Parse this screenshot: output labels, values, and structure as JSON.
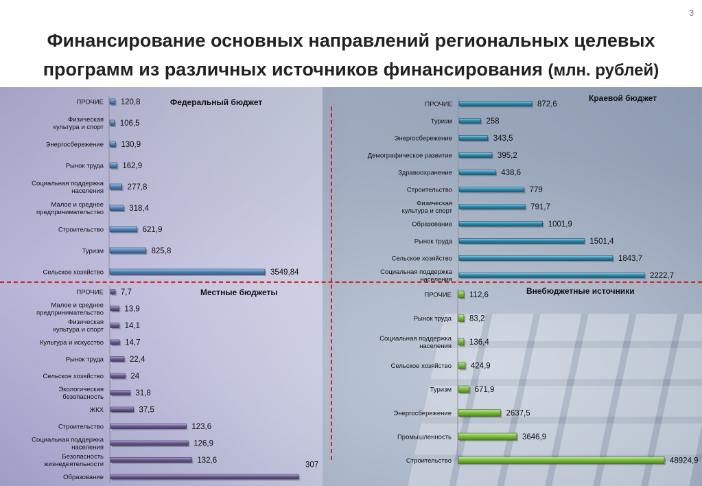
{
  "slide_number": "3",
  "title": {
    "line1": "Финансирование основных направлений региональных целевых",
    "line2": "программ из различных источников финансирования",
    "unit": "(млн. рублей)"
  },
  "colors": {
    "federal": "#4f86c4",
    "regional": "#2a8fb5",
    "local": "#6c5a96",
    "offbudget": "#7cc43a",
    "divider": "#d42020"
  },
  "chart_data": [
    {
      "type": "bar",
      "orientation": "horizontal",
      "title": "Федеральный бюджет",
      "categories": [
        [
          "ПРОЧИЕ"
        ],
        [
          "Физическая",
          "культура и спорт"
        ],
        [
          "Энергосбережение"
        ],
        [
          "Рынок труда"
        ],
        [
          "Социальная поддержка",
          "населения"
        ],
        [
          "Малое и среднее",
          "предпринимательство"
        ],
        [
          "Строительство"
        ],
        [
          "Туризм"
        ],
        [
          "Сельское хозяйство"
        ]
      ],
      "values": [
        120.8,
        106.5,
        130.9,
        162.9,
        277.8,
        318.4,
        621.9,
        825.8,
        3549.84
      ],
      "labels": [
        "120,8",
        "106,5",
        "130,9",
        "162,9",
        "277,8",
        "318,4",
        "621,9",
        "825,8",
        "3549,84"
      ]
    },
    {
      "type": "bar",
      "orientation": "horizontal",
      "title": "Краевой бюджет",
      "categories": [
        [
          "ПРОЧИЕ"
        ],
        [
          "Туризм"
        ],
        [
          "Энергосбережение"
        ],
        [
          "Демографическое развитие"
        ],
        [
          "Здравоохранение"
        ],
        [
          "Строительство"
        ],
        [
          "Физическая",
          "культура и спорт"
        ],
        [
          "Образование"
        ],
        [
          "Рынок труда"
        ],
        [
          "Сельское хозяйство"
        ],
        [
          "Социальная поддержка",
          "населения"
        ]
      ],
      "values": [
        872.6,
        258,
        343.5,
        395.2,
        438.6,
        779,
        791.7,
        1001.9,
        1501.4,
        1843.7,
        2222.7
      ],
      "labels": [
        "872,6",
        "258",
        "343,5",
        "395,2",
        "438,6",
        "779",
        "791,7",
        "1001,9",
        "1501,4",
        "1843,7",
        "2222,7"
      ]
    },
    {
      "type": "bar",
      "orientation": "horizontal",
      "title": "Местные бюджеты",
      "categories": [
        [
          "ПРОЧИЕ"
        ],
        [
          "Малое и среднее",
          "предпринимательство"
        ],
        [
          "Физическая",
          "культура и спорт"
        ],
        [
          "Культура и искусство"
        ],
        [
          "Рынок труда"
        ],
        [
          "Сельское хозяйство"
        ],
        [
          "Экологическая",
          "безопасность"
        ],
        [
          "ЖКХ"
        ],
        [
          "Строительство"
        ],
        [
          "Социальная поддержка",
          "населения"
        ],
        [
          "Безопасность",
          "жизнедеятельности"
        ],
        [
          "Образование"
        ]
      ],
      "values": [
        7.7,
        13.9,
        14.1,
        14.7,
        22.4,
        24,
        31.8,
        37.5,
        123.6,
        126.9,
        132.6,
        307
      ],
      "labels": [
        "7,7",
        "13,9",
        "14,1",
        "14,7",
        "22,4",
        "24",
        "31,8",
        "37,5",
        "123,6",
        "126,9",
        "132,6",
        "307"
      ]
    },
    {
      "type": "bar",
      "orientation": "horizontal",
      "title": "Внебюджетные источники",
      "categories": [
        [
          "ПРОЧИЕ"
        ],
        [
          "Рынок труда"
        ],
        [
          "Социальная поддержка",
          "населения"
        ],
        [
          "Сельское хозяйство"
        ],
        [
          "Туризм"
        ],
        [
          "Энергосбережение"
        ],
        [
          "Промышленность"
        ],
        [
          "Строительство"
        ]
      ],
      "values": [
        112.6,
        83.2,
        136.4,
        424.9,
        671.9,
        2637.5,
        3646.9,
        48924.9
      ],
      "labels": [
        "112,6",
        "83,2",
        "136,4",
        "424,9",
        "671,9",
        "2637,5",
        "3646,9",
        "48924,9"
      ]
    }
  ]
}
